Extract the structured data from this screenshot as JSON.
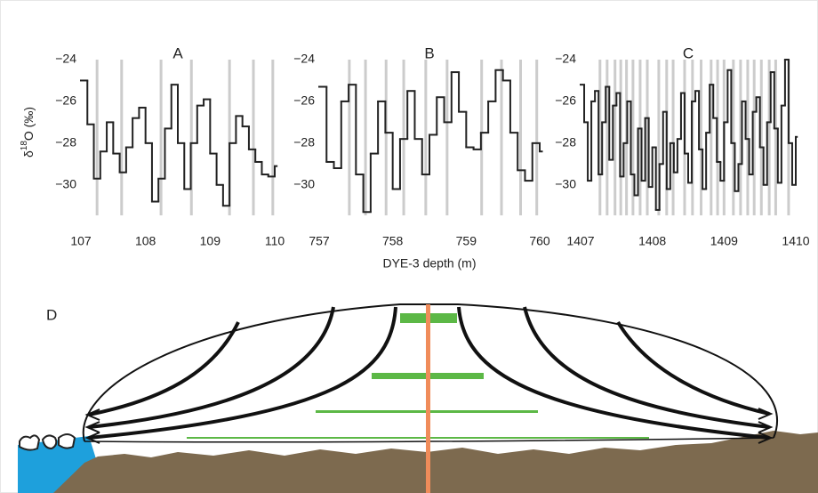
{
  "chart_data": [
    {
      "type": "step",
      "title": "A",
      "ylabel_parts": [
        "δ",
        "18",
        "O (‰)"
      ],
      "x": [
        107,
        107.1,
        107.2,
        107.3,
        107.4,
        107.5,
        107.6,
        107.7,
        107.8,
        107.9,
        108,
        108.1,
        108.2,
        108.3,
        108.4,
        108.5,
        108.6,
        108.7,
        108.8,
        108.9,
        109,
        109.1,
        109.2,
        109.3,
        109.4,
        109.5,
        109.6,
        109.7,
        109.8,
        109.9,
        110
      ],
      "values": [
        -25.0,
        -27.1,
        -29.7,
        -28.4,
        -27.0,
        -28.5,
        -29.4,
        -28.2,
        -26.8,
        -26.3,
        -28.0,
        -30.8,
        -29.7,
        -27.3,
        -25.2,
        -28.0,
        -30.2,
        -28.0,
        -26.2,
        -25.9,
        -28.5,
        -30.0,
        -31.0,
        -28.0,
        -26.7,
        -27.2,
        -28.3,
        -28.9,
        -29.5,
        -29.6,
        -29.1
      ],
      "markers": [
        107.25,
        107.63,
        108.24,
        108.71,
        109.3,
        109.67,
        109.97
      ],
      "color": "#222222",
      "marker_color": "#cccccc",
      "xlim": [
        107,
        110
      ],
      "xticks": [
        107,
        108,
        109,
        110
      ],
      "ylim": [
        -31.8,
        -24
      ],
      "yticks": [
        {
          "value": -24,
          "label": "−24"
        },
        {
          "value": -26,
          "label": "−26"
        },
        {
          "value": -28,
          "label": "−28"
        },
        {
          "value": -30,
          "label": "−30"
        }
      ]
    },
    {
      "type": "step",
      "title": "B",
      "xlabel": "DYE-3 depth (m)",
      "x": [
        757,
        757.1,
        757.2,
        757.3,
        757.4,
        757.5,
        757.6,
        757.7,
        757.8,
        757.9,
        758,
        758.1,
        758.2,
        758.3,
        758.4,
        758.5,
        758.6,
        758.7,
        758.8,
        758.9,
        759,
        759.1,
        759.2,
        759.3,
        759.4,
        759.5,
        759.6,
        759.7,
        759.8,
        759.9,
        760
      ],
      "values": [
        -25.3,
        -28.9,
        -29.2,
        -26.0,
        -25.2,
        -29.5,
        -31.3,
        -28.5,
        -26.0,
        -27.5,
        -30.2,
        -27.8,
        -25.5,
        -27.8,
        -29.5,
        -27.6,
        -25.8,
        -27.0,
        -24.6,
        -26.5,
        -28.2,
        -28.3,
        -27.5,
        -26.0,
        -24.5,
        -25.0,
        -27.5,
        -29.3,
        -29.8,
        -28.0,
        -28.4
      ],
      "markers": [
        757.41,
        757.63,
        757.91,
        758.15,
        758.45,
        758.74,
        759.21,
        759.48,
        759.74,
        759.96
      ],
      "color": "#222222",
      "marker_color": "#cccccc",
      "xlim": [
        757,
        760
      ],
      "xticks": [
        757,
        758,
        759,
        760
      ],
      "ylim": [
        -31.8,
        -24
      ],
      "yticks": [
        {
          "value": -24,
          "label": "−24"
        },
        {
          "value": -26,
          "label": "−26"
        },
        {
          "value": -28,
          "label": "−28"
        },
        {
          "value": -30,
          "label": "−30"
        }
      ]
    },
    {
      "type": "step",
      "title": "C",
      "x": [
        1407,
        1407.05,
        1407.1,
        1407.15,
        1407.2,
        1407.25,
        1407.3,
        1407.35,
        1407.4,
        1407.45,
        1407.5,
        1407.55,
        1407.6,
        1407.65,
        1407.7,
        1407.75,
        1407.8,
        1407.85,
        1407.9,
        1407.95,
        1408,
        1408.05,
        1408.1,
        1408.15,
        1408.2,
        1408.25,
        1408.3,
        1408.35,
        1408.4,
        1408.45,
        1408.5,
        1408.55,
        1408.6,
        1408.65,
        1408.7,
        1408.75,
        1408.8,
        1408.85,
        1408.9,
        1408.95,
        1409,
        1409.05,
        1409.1,
        1409.15,
        1409.2,
        1409.25,
        1409.3,
        1409.35,
        1409.4,
        1409.45,
        1409.5,
        1409.55,
        1409.6,
        1409.65,
        1409.7,
        1409.75,
        1409.8,
        1409.85,
        1409.9,
        1409.95,
        1410
      ],
      "values": [
        -25.2,
        -27.0,
        -29.8,
        -26.0,
        -25.5,
        -29.5,
        -27.0,
        -25.3,
        -28.8,
        -26.2,
        -25.6,
        -29.6,
        -28.0,
        -26.0,
        -29.5,
        -30.5,
        -27.3,
        -29.8,
        -26.8,
        -30.1,
        -28.2,
        -31.2,
        -29.0,
        -26.5,
        -30.2,
        -28.0,
        -29.4,
        -27.8,
        -25.6,
        -28.5,
        -29.9,
        -26.0,
        -25.5,
        -28.3,
        -30.2,
        -27.5,
        -25.2,
        -26.8,
        -28.9,
        -29.8,
        -27.0,
        -24.5,
        -28.0,
        -30.3,
        -29.0,
        -26.0,
        -27.8,
        -29.5,
        -26.5,
        -25.8,
        -28.2,
        -30.0,
        -27.0,
        -24.6,
        -27.3,
        -29.9,
        -26.2,
        -24.0,
        -28.0,
        -30.0,
        -27.7
      ],
      "markers": [
        1407.27,
        1407.37,
        1407.48,
        1407.56,
        1407.64,
        1407.73,
        1407.83,
        1407.93,
        1408.09,
        1408.2,
        1408.29,
        1408.45,
        1408.56,
        1408.68,
        1408.82,
        1408.91,
        1409.0,
        1409.13,
        1409.23,
        1409.33,
        1409.42,
        1409.52,
        1409.63,
        1409.72,
        1409.9
      ],
      "color": "#222222",
      "marker_color": "#cccccc",
      "xlim": [
        1407,
        1410
      ],
      "xticks": [
        1407,
        1408,
        1409,
        1410
      ],
      "ylim": [
        -31.8,
        -24
      ],
      "yticks": [
        {
          "value": -24,
          "label": "−24"
        },
        {
          "value": -26,
          "label": "−26"
        },
        {
          "value": -28,
          "label": "−28"
        },
        {
          "value": -30,
          "label": "−30"
        }
      ]
    }
  ],
  "diagram": {
    "label": "D"
  }
}
